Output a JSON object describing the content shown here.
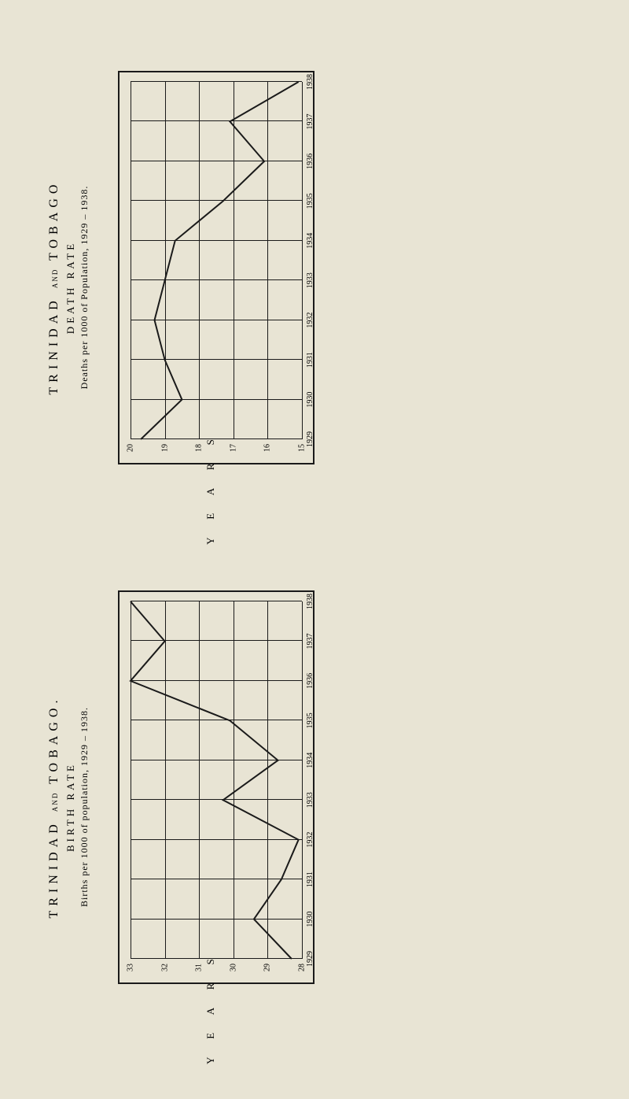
{
  "birth_chart": {
    "title_main_pre": "TRINIDAD",
    "title_main_and": "AND",
    "title_main_post": "TOBAGO.",
    "title_sub": "BIRTH RATE",
    "caption": "Births per 1000 of population, 1929 – 1938.",
    "y_axis_title": "Y E A R S",
    "years": [
      "1929",
      "1930",
      "1931",
      "1932",
      "1933",
      "1934",
      "1935",
      "1936",
      "1937",
      "1938"
    ],
    "value_ticks": [
      33,
      32,
      31,
      30,
      29,
      28
    ],
    "values": [
      28.3,
      29.4,
      28.6,
      28.1,
      30.3,
      28.7,
      30.1,
      33.0,
      32.0,
      33.0
    ],
    "line_color": "#1a1a1a",
    "line_width": 2,
    "background_color": "#e8e4d4",
    "grid_color": "#1a1a1a",
    "value_min": 28,
    "value_max": 33
  },
  "death_chart": {
    "title_main_pre": "TRINIDAD",
    "title_main_and": "AND",
    "title_main_post": "TOBAGO",
    "title_sub": "DEATH RATE",
    "caption": "Deaths per 1000 of Population, 1929 – 1938.",
    "y_axis_title": "Y E A R S",
    "years": [
      "1929",
      "1930",
      "1931",
      "1932",
      "1933",
      "1934",
      "1935",
      "1936",
      "1937",
      "1938"
    ],
    "value_ticks": [
      20,
      19,
      18,
      17,
      16,
      15
    ],
    "values": [
      19.7,
      18.5,
      19.0,
      19.3,
      19.0,
      18.7,
      17.3,
      16.1,
      17.1,
      15.1
    ],
    "line_color": "#1a1a1a",
    "line_width": 2,
    "background_color": "#e8e4d4",
    "grid_color": "#1a1a1a",
    "value_min": 15,
    "value_max": 20
  }
}
